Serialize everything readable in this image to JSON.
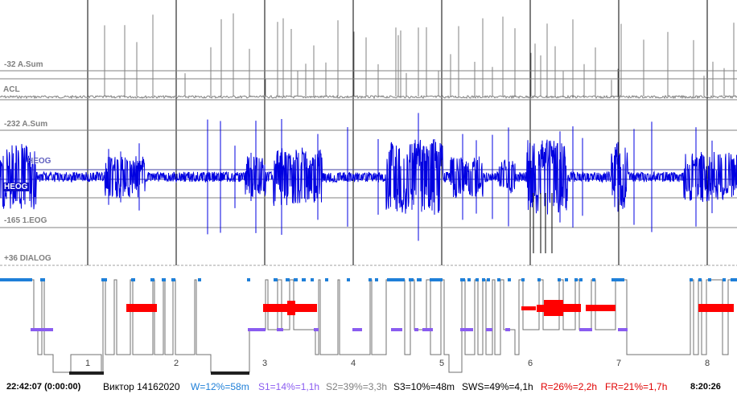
{
  "channels": {
    "acl_scale": "-32 A.Sum",
    "acl_name": "ACL",
    "heog_scale_top": "-232 A.Sum",
    "heog_inline": "HEOG",
    "heog_name": "HEOG",
    "eog_scale": "-165 1.EOG",
    "dialog_scale": "+36 DIALOG"
  },
  "hour_markers": [
    "1",
    "2",
    "3",
    "4",
    "5",
    "6",
    "7",
    "8"
  ],
  "status": {
    "start_time": "22:42:07 (0:00:00)",
    "record_name": "Виктор 14162020",
    "w_stat": "W=12%=58m",
    "s1_stat": "S1=14%=1,1h",
    "s2_stat": "S2=39%=3,3h",
    "s3_stat": "S3=10%=48m",
    "sws_stat": "SWS=49%=4,1h",
    "r_stat": "R=26%=2,2h",
    "fr_stat": "FR=21%=1,7h",
    "end_time": "8:20:26"
  },
  "colors": {
    "acl": "#808080",
    "heog": "#0000e0",
    "wake": "#1e7fd8",
    "s1": "#8a5cf0",
    "rem": "#ff0000",
    "deep": "#202020",
    "stage_line": "#707070",
    "grid": "#000000"
  }
}
